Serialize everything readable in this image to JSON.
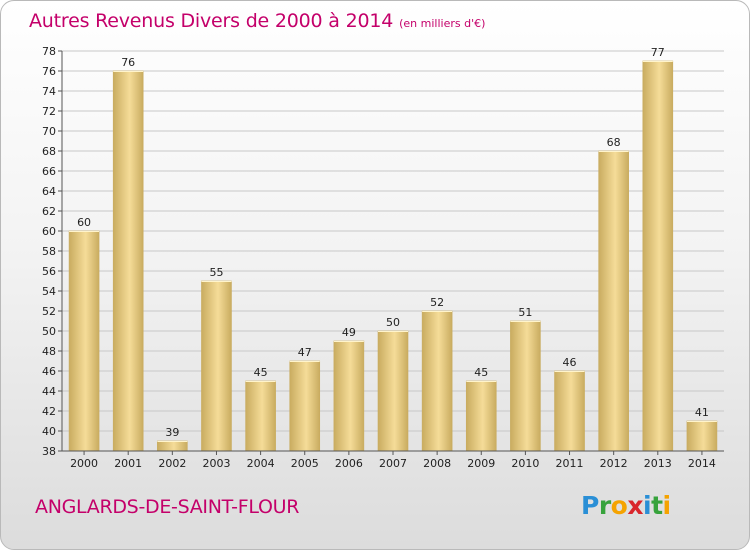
{
  "header": {
    "title": "Autres Revenus Divers de 2000 à 2014",
    "unit_note": "(en milliers d'€)"
  },
  "footer": {
    "town": "ANGLARDS-DE-SAINT-FLOUR",
    "logo": {
      "letters": [
        "P",
        "r",
        "o",
        "x",
        "i",
        "t",
        "i"
      ],
      "colors": [
        "#2a8fd6",
        "#37a33c",
        "#f5a300",
        "#d9262c",
        "#2a8fd6",
        "#37a33c",
        "#f5a300"
      ]
    }
  },
  "colors": {
    "bar_light": "#f5dc98",
    "bar_dark": "#c9ac60",
    "grid": "#c8c8c8",
    "title": "#c4006a"
  },
  "chart_data": {
    "type": "bar",
    "categories": [
      "2000",
      "2001",
      "2002",
      "2003",
      "2004",
      "2005",
      "2006",
      "2007",
      "2008",
      "2009",
      "2010",
      "2011",
      "2012",
      "2013",
      "2014"
    ],
    "values": [
      60,
      76,
      39,
      55,
      45,
      47,
      49,
      50,
      52,
      45,
      51,
      46,
      68,
      77,
      41
    ],
    "ylim": [
      38,
      78
    ],
    "yticks": [
      38,
      40,
      42,
      44,
      46,
      48,
      50,
      52,
      54,
      56,
      58,
      60,
      62,
      64,
      66,
      68,
      70,
      72,
      74,
      76,
      78
    ],
    "grid": true,
    "data_labels": true
  }
}
